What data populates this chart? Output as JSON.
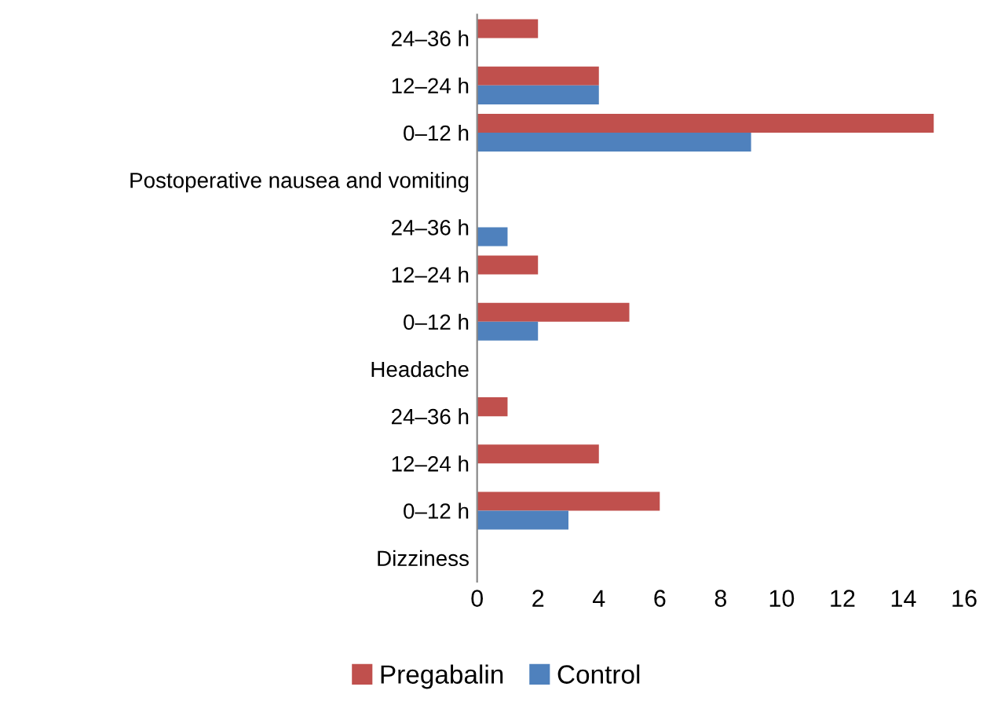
{
  "chart_data": {
    "type": "bar",
    "orientation": "horizontal",
    "categories": [
      "24–36 h",
      "12–24 h",
      "0–12 h",
      "Postoperative nausea and vomiting",
      "24–36 h",
      "12–24 h",
      "0–12 h",
      "Headache",
      "24–36 h",
      "12–24 h",
      "0–12 h",
      "Dizziness"
    ],
    "series": [
      {
        "name": "Pregabalin",
        "color": "#c0504d",
        "values": [
          2,
          4,
          15,
          null,
          null,
          2,
          5,
          null,
          1,
          4,
          6,
          null
        ]
      },
      {
        "name": "Control",
        "color": "#4f81bd",
        "values": [
          null,
          4,
          9,
          null,
          1,
          null,
          2,
          null,
          null,
          null,
          3,
          null
        ]
      }
    ],
    "xlim": [
      0,
      16
    ],
    "xticks": [
      0,
      2,
      4,
      6,
      8,
      10,
      12,
      14,
      16
    ],
    "grid": false,
    "legend": "bottom"
  }
}
